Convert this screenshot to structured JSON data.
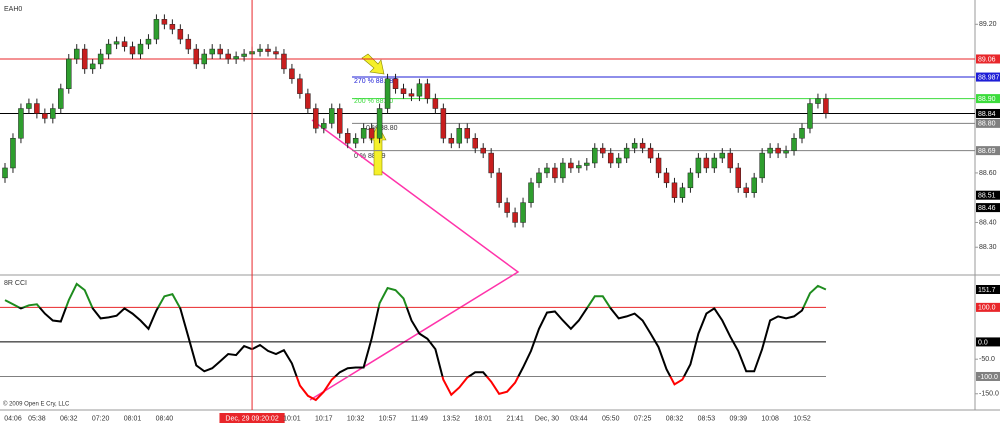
{
  "chart_data": [
    {
      "type": "candlestick",
      "title": "EAH0",
      "categories": [
        null,
        "04:06",
        null,
        null,
        "05:38",
        null,
        null,
        null,
        "06:32",
        null,
        null,
        null,
        "07:20",
        null,
        null,
        null,
        "08:01",
        null,
        null,
        null,
        "08:40",
        null,
        null,
        null,
        null,
        null,
        null,
        null,
        null,
        null,
        null,
        "Dec, 29 09:20:02",
        null,
        null,
        null,
        null,
        "10:01",
        null,
        null,
        null,
        "10:17",
        null,
        null,
        null,
        "10:32",
        null,
        null,
        null,
        "10:57",
        null,
        null,
        null,
        "11:49",
        null,
        null,
        null,
        "13:52",
        null,
        null,
        null,
        "18:01",
        null,
        null,
        null,
        "21:41",
        null,
        null,
        null,
        "Dec, 30",
        null,
        null,
        null,
        "03:44",
        null,
        null,
        null,
        "05:50",
        null,
        null,
        null,
        "07:25",
        null,
        null,
        null,
        "08:32",
        null,
        null,
        null,
        "08:53",
        null,
        null,
        null,
        "09:39",
        null,
        null,
        null,
        "10:08",
        null,
        null,
        null,
        "10:52",
        null,
        null,
        null
      ],
      "cursor_index": 31,
      "cursor_color": "#e8262a",
      "open": [
        88.58,
        88.62,
        88.74,
        88.86,
        88.88,
        88.84,
        88.82,
        88.86,
        88.94,
        89.06,
        89.1,
        89.02,
        89.04,
        89.08,
        89.12,
        89.13,
        89.11,
        89.08,
        89.12,
        89.14,
        89.22,
        89.2,
        89.18,
        89.14,
        89.1,
        89.04,
        89.08,
        89.1,
        89.08,
        89.06,
        89.07,
        89.08,
        89.09,
        89.1,
        89.09,
        89.08,
        89.02,
        88.98,
        88.92,
        88.86,
        88.78,
        88.8,
        88.86,
        88.76,
        88.72,
        88.74,
        88.78,
        88.74,
        88.86,
        88.98,
        88.94,
        88.92,
        88.91,
        88.96,
        88.9,
        88.86,
        88.74,
        88.72,
        88.78,
        88.74,
        88.7,
        88.68,
        88.6,
        88.48,
        88.44,
        88.4,
        88.48,
        88.56,
        88.6,
        88.62,
        88.58,
        88.64,
        88.62,
        88.63,
        88.64,
        88.7,
        88.68,
        88.64,
        88.66,
        88.7,
        88.72,
        88.7,
        88.66,
        88.6,
        88.56,
        88.5,
        88.54,
        88.6,
        88.66,
        88.62,
        88.66,
        88.68,
        88.62,
        88.54,
        88.52,
        88.58,
        88.68,
        88.7,
        88.68,
        88.69,
        88.74,
        88.78,
        88.88,
        88.9
      ],
      "high": [
        88.64,
        88.76,
        88.88,
        88.9,
        88.9,
        88.86,
        88.88,
        88.96,
        89.08,
        89.12,
        89.12,
        89.06,
        89.1,
        89.14,
        89.15,
        89.15,
        89.13,
        89.14,
        89.16,
        89.24,
        89.24,
        89.22,
        89.2,
        89.16,
        89.12,
        89.1,
        89.12,
        89.12,
        89.1,
        89.09,
        89.1,
        89.11,
        89.12,
        89.12,
        89.11,
        89.1,
        89.04,
        89.0,
        88.94,
        88.88,
        88.82,
        88.88,
        88.88,
        88.78,
        88.76,
        88.8,
        88.8,
        88.88,
        89.0,
        89.0,
        88.96,
        88.94,
        88.98,
        88.98,
        88.92,
        88.88,
        88.76,
        88.8,
        88.8,
        88.76,
        88.72,
        88.7,
        88.62,
        88.5,
        88.46,
        88.5,
        88.58,
        88.62,
        88.64,
        88.64,
        88.66,
        88.66,
        88.65,
        88.66,
        88.72,
        88.72,
        88.7,
        88.68,
        88.72,
        88.74,
        88.74,
        88.72,
        88.68,
        88.62,
        88.58,
        88.56,
        88.62,
        88.68,
        88.68,
        88.68,
        88.7,
        88.7,
        88.64,
        88.56,
        88.6,
        88.7,
        88.72,
        88.72,
        88.71,
        88.76,
        88.8,
        88.9,
        88.92,
        88.92
      ],
      "low": [
        88.56,
        88.6,
        88.72,
        88.84,
        88.82,
        88.8,
        88.8,
        88.84,
        88.92,
        89.04,
        89.0,
        89.0,
        89.02,
        89.06,
        89.1,
        89.09,
        89.06,
        89.06,
        89.1,
        89.12,
        89.18,
        89.16,
        89.12,
        89.08,
        89.02,
        89.02,
        89.06,
        89.06,
        89.04,
        89.04,
        89.05,
        89.06,
        89.07,
        89.07,
        89.06,
        89.0,
        88.96,
        88.9,
        88.84,
        88.76,
        88.76,
        88.78,
        88.74,
        88.7,
        88.7,
        88.72,
        88.72,
        88.72,
        88.84,
        88.92,
        88.9,
        88.89,
        88.89,
        88.88,
        88.84,
        88.72,
        88.7,
        88.7,
        88.72,
        88.68,
        88.66,
        88.58,
        88.46,
        88.42,
        88.38,
        88.38,
        88.46,
        88.54,
        88.58,
        88.56,
        88.56,
        88.6,
        88.6,
        88.61,
        88.62,
        88.66,
        88.62,
        88.62,
        88.64,
        88.68,
        88.68,
        88.64,
        88.58,
        88.54,
        88.48,
        88.48,
        88.52,
        88.58,
        88.6,
        88.6,
        88.64,
        88.6,
        88.52,
        88.5,
        88.5,
        88.56,
        88.66,
        88.66,
        88.66,
        88.67,
        88.72,
        88.76,
        88.86,
        88.82
      ],
      "close": [
        88.62,
        88.74,
        88.86,
        88.88,
        88.84,
        88.82,
        88.86,
        88.94,
        89.06,
        89.1,
        89.02,
        89.04,
        89.08,
        89.12,
        89.13,
        89.11,
        89.08,
        89.12,
        89.14,
        89.22,
        89.2,
        89.18,
        89.14,
        89.1,
        89.04,
        89.08,
        89.1,
        89.08,
        89.06,
        89.07,
        89.08,
        89.09,
        89.1,
        89.09,
        89.08,
        89.02,
        88.98,
        88.92,
        88.86,
        88.78,
        88.8,
        88.86,
        88.76,
        88.72,
        88.74,
        88.78,
        88.74,
        88.86,
        88.98,
        88.94,
        88.92,
        88.91,
        88.96,
        88.9,
        88.86,
        88.74,
        88.72,
        88.78,
        88.74,
        88.7,
        88.68,
        88.6,
        88.48,
        88.44,
        88.4,
        88.48,
        88.56,
        88.6,
        88.62,
        88.58,
        88.64,
        88.62,
        88.63,
        88.64,
        88.7,
        88.68,
        88.64,
        88.66,
        88.7,
        88.72,
        88.7,
        88.66,
        88.6,
        88.56,
        88.5,
        88.54,
        88.6,
        88.66,
        88.62,
        88.66,
        88.68,
        88.62,
        88.54,
        88.52,
        88.58,
        88.68,
        88.7,
        88.68,
        88.69,
        88.74,
        88.78,
        88.88,
        88.9,
        88.84
      ],
      "up_color": "#2e9e2e",
      "down_color": "#c81e1e",
      "ylim": [
        88.2,
        89.29
      ],
      "yticks": [
        {
          "value": 88.3,
          "label": "88.30"
        },
        {
          "value": 88.4,
          "label": "88.40"
        },
        {
          "value": 88.6,
          "label": "88.60"
        },
        {
          "value": 89.2,
          "label": "89.20"
        }
      ],
      "levels": [
        {
          "value": 89.06,
          "label": "89.06",
          "color": "#e8262a"
        },
        {
          "value": 88.987,
          "label": "88.987",
          "color": "#1d1dd6"
        },
        {
          "value": 88.9,
          "label": "88.90",
          "color": "#3cdc3c"
        },
        {
          "value": 88.84,
          "label": "88.84",
          "color": "#000000"
        },
        {
          "value": 88.8,
          "label": "88.80",
          "color": "#808080"
        },
        {
          "value": 88.69,
          "label": "88.69",
          "color": "#808080"
        },
        {
          "value": 88.51,
          "label": "88.51",
          "color": "#000000"
        },
        {
          "value": 88.46,
          "label": "88.46",
          "color": "#000000"
        }
      ],
      "annotations": [
        "270 % 88.987",
        "200 % 88.90",
        "0 % 88.80",
        "0 % 88.69"
      ]
    },
    {
      "type": "line",
      "title": "8R CCI",
      "values": [
        121,
        109,
        97,
        106,
        109,
        82,
        62,
        59,
        121,
        168,
        150,
        97,
        68,
        71,
        76,
        97,
        82,
        62,
        38,
        91,
        132,
        138,
        97,
        15,
        -68,
        -85,
        -76,
        -56,
        -35,
        -38,
        -12,
        -21,
        -9,
        -26,
        -35,
        -24,
        -62,
        -126,
        -156,
        -168,
        -144,
        -109,
        -88,
        -76,
        -74,
        -74,
        9,
        112,
        156,
        150,
        126,
        62,
        24,
        9,
        -21,
        -109,
        -153,
        -132,
        -103,
        -88,
        -88,
        -115,
        -150,
        -144,
        -118,
        -74,
        -26,
        38,
        85,
        88,
        62,
        38,
        62,
        97,
        132,
        132,
        97,
        68,
        74,
        82,
        62,
        24,
        -15,
        -79,
        -123,
        -109,
        -65,
        24,
        82,
        97,
        62,
        15,
        -26,
        -85,
        -85,
        -21,
        62,
        74,
        68,
        74,
        91,
        141,
        162,
        151.7
      ],
      "color": "#000000",
      "upper_color": "#1e8c1e",
      "lower_color": "#ff0000",
      "ylim": [
        -197,
        185
      ],
      "yticks": [
        {
          "value": -150,
          "label": "-150.0"
        },
        {
          "value": -50,
          "label": "-50.0"
        }
      ],
      "levels": [
        {
          "value": 100,
          "label": "100.0",
          "color": "#e8262a"
        },
        {
          "value": 0,
          "label": "0.0",
          "color": "#000000"
        },
        {
          "value": -100,
          "label": "-100.0",
          "color": "#808080"
        }
      ]
    }
  ],
  "copyright": "© 2009 Open E Cry, LLC"
}
